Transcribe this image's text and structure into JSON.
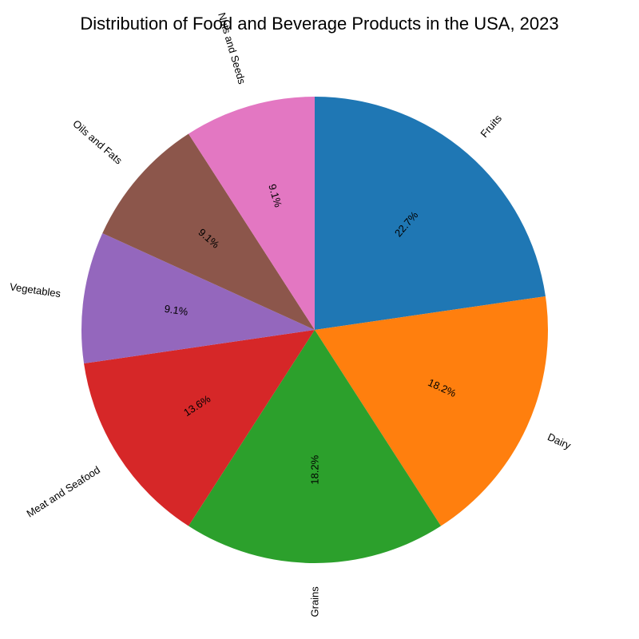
{
  "chart_data": {
    "type": "pie",
    "title": "Distribution of Food and Beverage Products in the USA, 2023",
    "start_angle_deg": 90,
    "direction": "clockwise",
    "label_rotation": "radial",
    "slices": [
      {
        "label": "Fruits",
        "value": 22.7,
        "pct_label": "22.7%",
        "color": "#1f77b4"
      },
      {
        "label": "Dairy",
        "value": 18.2,
        "pct_label": "18.2%",
        "color": "#ff7f0e"
      },
      {
        "label": "Grains",
        "value": 18.2,
        "pct_label": "18.2%",
        "color": "#2ca02c"
      },
      {
        "label": "Meat and Seafood",
        "value": 13.6,
        "pct_label": "13.6%",
        "color": "#d62728"
      },
      {
        "label": "Vegetables",
        "value": 9.1,
        "pct_label": "9.1%",
        "color": "#9467bd"
      },
      {
        "label": "Oils and Fats",
        "value": 9.1,
        "pct_label": "9.1%",
        "color": "#8c564b"
      },
      {
        "label": "Nuts and Seeds",
        "value": 9.1,
        "pct_label": "9.1%",
        "color": "#e377c2"
      }
    ]
  }
}
